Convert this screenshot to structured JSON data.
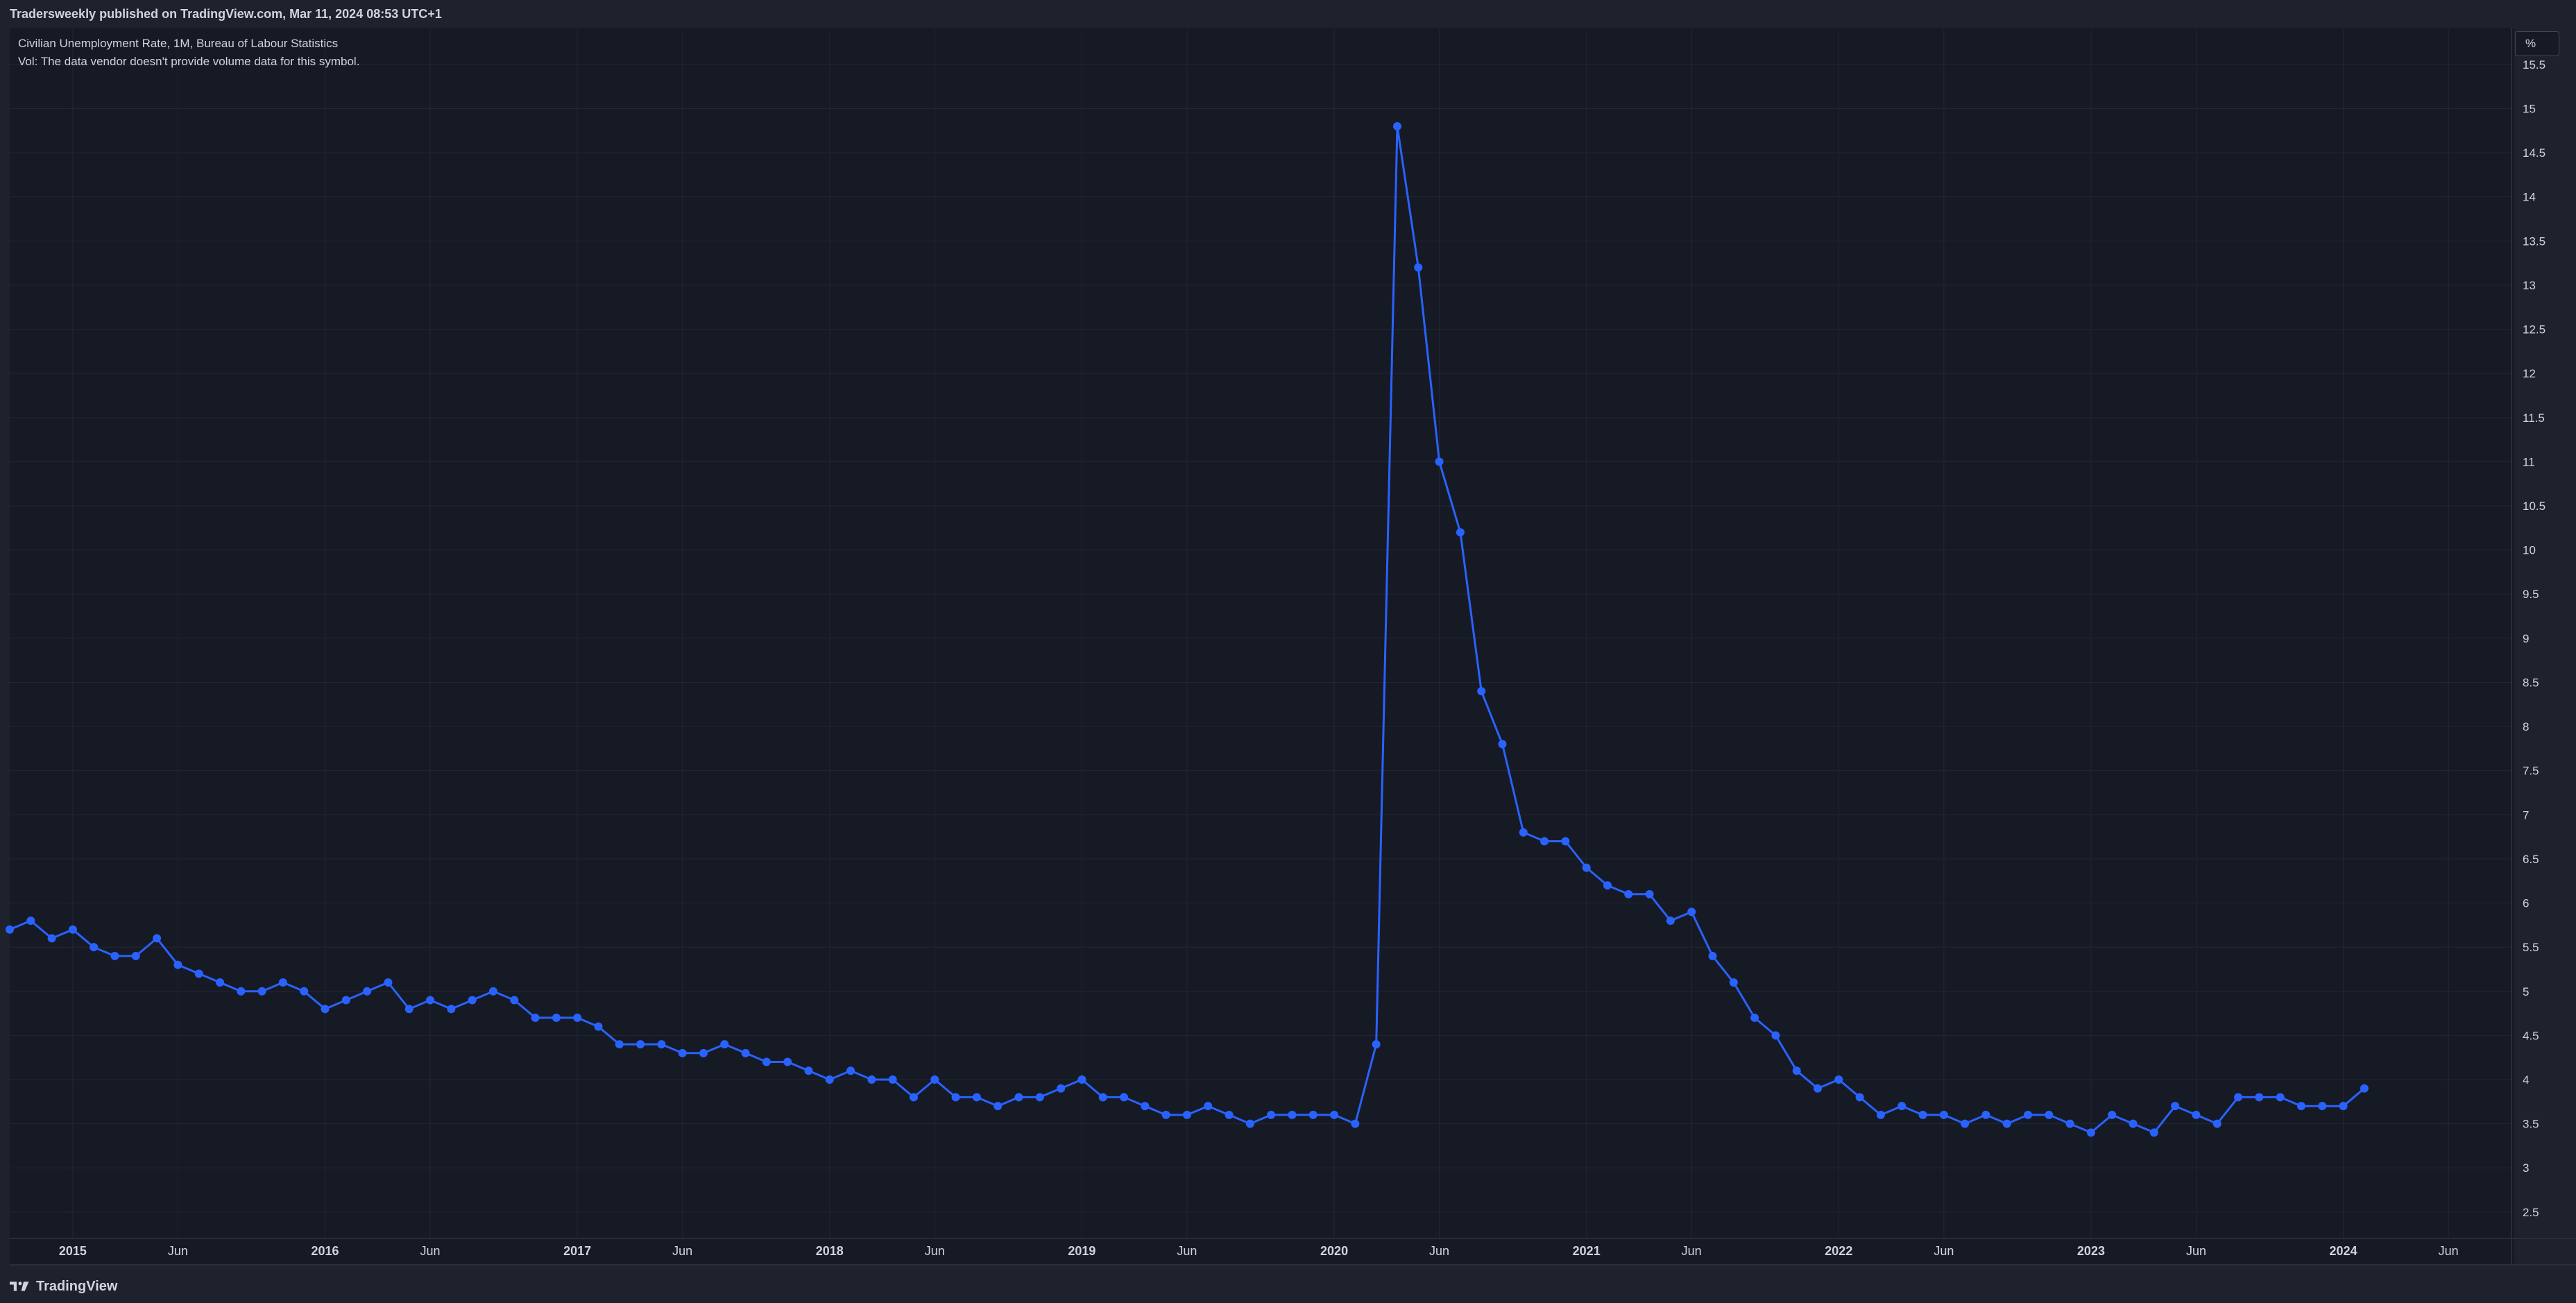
{
  "header": {
    "published": "Tradersweekly published on TradingView.com, Mar 11, 2024 08:53 UTC+1"
  },
  "legend": {
    "title": "Civilian Unemployment Rate, 1M, Bureau of Labour Statistics",
    "volume_note": "Vol: The data vendor doesn't provide volume data for this symbol."
  },
  "price_axis": {
    "unit": "%"
  },
  "footer": {
    "brand": "TradingView"
  },
  "colors": {
    "background": "#161a25",
    "frame": "#1e222d",
    "grid": "#232734",
    "series": "#2962ff",
    "text": "#d1d4dc"
  },
  "chart_data": {
    "type": "line",
    "title": "Civilian Unemployment Rate, 1M, Bureau of Labour Statistics",
    "xlabel": "",
    "ylabel": "%",
    "ylim": [
      2.2,
      15.9
    ],
    "xlim": [
      "2014-10",
      "2024-09"
    ],
    "grid": true,
    "y_ticks": [
      2.5,
      3,
      3.5,
      4,
      4.5,
      5,
      5.5,
      6,
      6.5,
      7,
      7.5,
      8,
      8.5,
      9,
      9.5,
      10,
      10.5,
      11,
      11.5,
      12,
      12.5,
      13,
      13.5,
      14,
      14.5,
      15,
      15.5
    ],
    "x_ticks": [
      {
        "date": "2015-01",
        "label": "2015",
        "year": true
      },
      {
        "date": "2015-06",
        "label": "Jun",
        "year": false
      },
      {
        "date": "2016-01",
        "label": "2016",
        "year": true
      },
      {
        "date": "2016-06",
        "label": "Jun",
        "year": false
      },
      {
        "date": "2017-01",
        "label": "2017",
        "year": true
      },
      {
        "date": "2017-06",
        "label": "Jun",
        "year": false
      },
      {
        "date": "2018-01",
        "label": "2018",
        "year": true
      },
      {
        "date": "2018-06",
        "label": "Jun",
        "year": false
      },
      {
        "date": "2019-01",
        "label": "2019",
        "year": true
      },
      {
        "date": "2019-06",
        "label": "Jun",
        "year": false
      },
      {
        "date": "2020-01",
        "label": "2020",
        "year": true
      },
      {
        "date": "2020-06",
        "label": "Jun",
        "year": false
      },
      {
        "date": "2021-01",
        "label": "2021",
        "year": true
      },
      {
        "date": "2021-06",
        "label": "Jun",
        "year": false
      },
      {
        "date": "2022-01",
        "label": "2022",
        "year": true
      },
      {
        "date": "2022-06",
        "label": "Jun",
        "year": false
      },
      {
        "date": "2023-01",
        "label": "2023",
        "year": true
      },
      {
        "date": "2023-06",
        "label": "Jun",
        "year": false
      },
      {
        "date": "2024-01",
        "label": "2024",
        "year": true
      },
      {
        "date": "2024-06",
        "label": "Jun",
        "year": false
      }
    ],
    "x": [
      "2014-10",
      "2014-11",
      "2014-12",
      "2015-01",
      "2015-02",
      "2015-03",
      "2015-04",
      "2015-05",
      "2015-06",
      "2015-07",
      "2015-08",
      "2015-09",
      "2015-10",
      "2015-11",
      "2015-12",
      "2016-01",
      "2016-02",
      "2016-03",
      "2016-04",
      "2016-05",
      "2016-06",
      "2016-07",
      "2016-08",
      "2016-09",
      "2016-10",
      "2016-11",
      "2016-12",
      "2017-01",
      "2017-02",
      "2017-03",
      "2017-04",
      "2017-05",
      "2017-06",
      "2017-07",
      "2017-08",
      "2017-09",
      "2017-10",
      "2017-11",
      "2017-12",
      "2018-01",
      "2018-02",
      "2018-03",
      "2018-04",
      "2018-05",
      "2018-06",
      "2018-07",
      "2018-08",
      "2018-09",
      "2018-10",
      "2018-11",
      "2018-12",
      "2019-01",
      "2019-02",
      "2019-03",
      "2019-04",
      "2019-05",
      "2019-06",
      "2019-07",
      "2019-08",
      "2019-09",
      "2019-10",
      "2019-11",
      "2019-12",
      "2020-01",
      "2020-02",
      "2020-03",
      "2020-04",
      "2020-05",
      "2020-06",
      "2020-07",
      "2020-08",
      "2020-09",
      "2020-10",
      "2020-11",
      "2020-12",
      "2021-01",
      "2021-02",
      "2021-03",
      "2021-04",
      "2021-05",
      "2021-06",
      "2021-07",
      "2021-08",
      "2021-09",
      "2021-10",
      "2021-11",
      "2021-12",
      "2022-01",
      "2022-02",
      "2022-03",
      "2022-04",
      "2022-05",
      "2022-06",
      "2022-07",
      "2022-08",
      "2022-09",
      "2022-10",
      "2022-11",
      "2022-12",
      "2023-01",
      "2023-02",
      "2023-03",
      "2023-04",
      "2023-05",
      "2023-06",
      "2023-07",
      "2023-08",
      "2023-09",
      "2023-10",
      "2023-11",
      "2023-12",
      "2024-01",
      "2024-02"
    ],
    "series": [
      {
        "values": [
          5.7,
          5.8,
          5.6,
          5.7,
          5.5,
          5.4,
          5.4,
          5.6,
          5.3,
          5.2,
          5.1,
          5.0,
          5.0,
          5.1,
          5.0,
          4.8,
          4.9,
          5.0,
          5.1,
          4.8,
          4.9,
          4.8,
          4.9,
          5.0,
          4.9,
          4.7,
          4.7,
          4.7,
          4.6,
          4.4,
          4.4,
          4.4,
          4.3,
          4.3,
          4.4,
          4.3,
          4.2,
          4.2,
          4.1,
          4.0,
          4.1,
          4.0,
          4.0,
          3.8,
          4.0,
          3.8,
          3.8,
          3.7,
          3.8,
          3.8,
          3.9,
          4.0,
          3.8,
          3.8,
          3.7,
          3.6,
          3.6,
          3.7,
          3.6,
          3.5,
          3.6,
          3.6,
          3.6,
          3.6,
          3.5,
          4.4,
          14.8,
          13.2,
          11.0,
          10.2,
          8.4,
          7.8,
          6.8,
          6.7,
          6.7,
          6.4,
          6.2,
          6.1,
          6.1,
          5.8,
          5.9,
          5.4,
          5.1,
          4.7,
          4.5,
          4.1,
          3.9,
          4.0,
          3.8,
          3.6,
          3.7,
          3.6,
          3.6,
          3.5,
          3.6,
          3.5,
          3.6,
          3.6,
          3.5,
          3.4,
          3.6,
          3.5,
          3.4,
          3.7,
          3.6,
          3.5,
          3.8,
          3.8,
          3.8,
          3.7,
          3.7,
          3.7,
          3.9
        ]
      }
    ]
  }
}
